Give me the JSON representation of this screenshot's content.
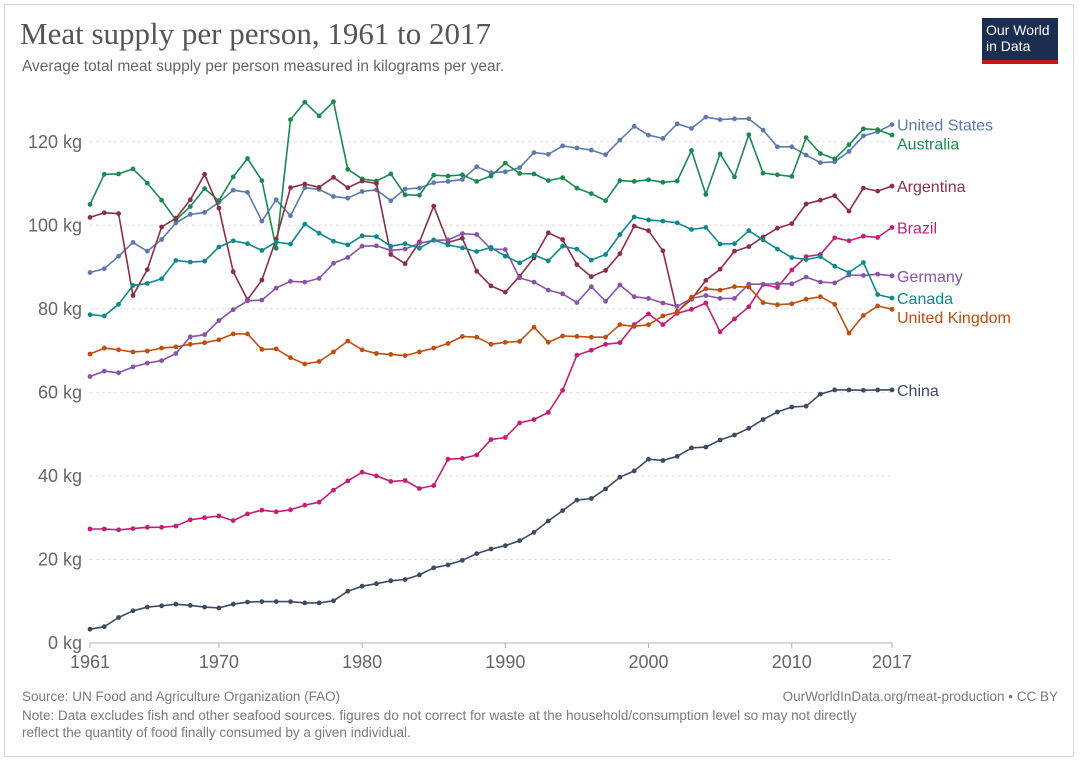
{
  "header": {
    "title": "Meat supply per person, 1961 to 2017",
    "subtitle": "Average total meat supply per person measured in kilograms per year."
  },
  "logo": {
    "line1": "Our World",
    "line2": "in Data"
  },
  "footer": {
    "source": "Source: UN Food and Agriculture Organization (FAO)",
    "url": "OurWorldInData.org/meat-production • CC BY",
    "note_line1": "Note: Data excludes fish and other seafood sources. figures do not correct for waste at the household/consumption level so may not directly",
    "note_line2": "reflect the quantity of food finally consumed by a given individual."
  },
  "chart_data": {
    "type": "line",
    "title": "Meat supply per person, 1961 to 2017",
    "subtitle": "Average total meat supply per person measured in kilograms per year.",
    "xlabel": "",
    "ylabel": "",
    "xlim": [
      1961,
      2017
    ],
    "ylim": [
      0,
      130
    ],
    "x_ticks": [
      1961,
      1970,
      1980,
      1990,
      2000,
      2010,
      2017
    ],
    "y_ticks": [
      0,
      20,
      40,
      60,
      80,
      100,
      120
    ],
    "y_tick_labels": [
      "0 kg",
      "20 kg",
      "40 kg",
      "60 kg",
      "80 kg",
      "100 kg",
      "120 kg"
    ],
    "grid": true,
    "legend": "right-edge labels",
    "x": [
      1961,
      1962,
      1963,
      1964,
      1965,
      1966,
      1967,
      1968,
      1969,
      1970,
      1971,
      1972,
      1973,
      1974,
      1975,
      1976,
      1977,
      1978,
      1979,
      1980,
      1981,
      1982,
      1983,
      1984,
      1985,
      1986,
      1987,
      1988,
      1989,
      1990,
      1991,
      1992,
      1993,
      1994,
      1995,
      1996,
      1997,
      1998,
      1999,
      2000,
      2001,
      2002,
      2003,
      2004,
      2005,
      2006,
      2007,
      2008,
      2009,
      2010,
      2011,
      2012,
      2013,
      2014,
      2015,
      2016,
      2017
    ],
    "series": [
      {
        "name": "United States",
        "color": "#5b7ab0",
        "values": [
          88.7,
          89.6,
          92.6,
          95.9,
          93.8,
          96.6,
          100.6,
          102.6,
          103.1,
          105.5,
          108.4,
          107.9,
          101.0,
          106.1,
          102.3,
          109.0,
          108.6,
          106.9,
          106.5,
          108.1,
          108.5,
          105.9,
          108.7,
          108.9,
          110.2,
          110.5,
          111.0,
          114.0,
          112.6,
          112.8,
          113.8,
          117.4,
          117.0,
          119.0,
          118.5,
          118.0,
          116.9,
          120.4,
          123.7,
          121.6,
          120.8,
          124.3,
          123.2,
          125.9,
          125.3,
          125.5,
          125.5,
          122.8,
          118.8,
          118.8,
          116.8,
          115.0,
          115.2,
          117.7,
          121.4,
          122.4,
          124.1
        ]
      },
      {
        "name": "Australia",
        "color": "#1a8a4f",
        "values": [
          105.0,
          112.2,
          112.3,
          113.5,
          110.1,
          106.0,
          101.3,
          104.5,
          108.8,
          105.9,
          111.6,
          116.0,
          110.7,
          94.5,
          125.3,
          129.5,
          126.2,
          129.6,
          113.4,
          111.1,
          110.6,
          112.3,
          107.3,
          107.2,
          112.0,
          111.8,
          112.1,
          110.5,
          111.8,
          114.9,
          112.4,
          112.3,
          110.7,
          111.4,
          108.9,
          107.6,
          105.9,
          110.7,
          110.5,
          110.9,
          110.3,
          110.6,
          117.9,
          107.4,
          117.1,
          111.6,
          121.7,
          112.5,
          112.1,
          111.7,
          121.0,
          117.2,
          115.9,
          119.3,
          123.1,
          122.9,
          121.6
        ]
      },
      {
        "name": "Argentina",
        "color": "#8b2e48",
        "values": [
          101.9,
          103.0,
          102.8,
          83.2,
          89.4,
          99.6,
          101.7,
          106.1,
          112.2,
          104.1,
          88.9,
          82.2,
          86.9,
          96.7,
          109.0,
          109.9,
          109.1,
          111.5,
          109.0,
          110.6,
          110.0,
          93.0,
          90.8,
          96.0,
          104.6,
          95.9,
          96.9,
          89.0,
          85.5,
          84.0,
          87.8,
          92.2,
          98.2,
          96.6,
          90.6,
          87.7,
          89.2,
          93.2,
          99.8,
          98.7,
          93.9,
          79.3,
          82.3,
          86.8,
          89.5,
          93.8,
          94.9,
          97.2,
          99.3,
          100.4,
          105.1,
          106.0,
          107.1,
          103.4,
          108.9,
          108.2,
          109.4
        ]
      },
      {
        "name": "Brazil",
        "color": "#c41e78",
        "values": [
          27.3,
          27.3,
          27.1,
          27.4,
          27.7,
          27.7,
          28.0,
          29.5,
          30.0,
          30.4,
          29.3,
          30.9,
          31.8,
          31.4,
          31.9,
          33.0,
          33.7,
          36.6,
          38.8,
          40.9,
          40.0,
          38.7,
          38.9,
          37.0,
          37.7,
          44.0,
          44.2,
          45.0,
          48.7,
          49.2,
          52.7,
          53.5,
          55.2,
          60.5,
          68.9,
          70.1,
          71.5,
          71.9,
          76.2,
          78.8,
          76.2,
          78.9,
          79.9,
          81.4,
          74.5,
          77.6,
          80.5,
          85.8,
          85.1,
          89.3,
          92.5,
          93.0,
          97.0,
          96.3,
          97.4,
          97.1,
          99.5
        ]
      },
      {
        "name": "Germany",
        "color": "#8a52a8",
        "values": [
          63.8,
          65.1,
          64.7,
          66.1,
          67.0,
          67.6,
          69.3,
          73.3,
          73.8,
          77.2,
          79.8,
          81.9,
          82.1,
          85.0,
          86.6,
          86.4,
          87.3,
          90.9,
          92.3,
          95.0,
          95.1,
          94.0,
          94.3,
          95.7,
          96.4,
          96.5,
          98.0,
          97.8,
          94.3,
          94.2,
          87.4,
          86.4,
          84.5,
          83.6,
          81.5,
          85.3,
          81.8,
          85.7,
          82.9,
          82.5,
          81.4,
          80.6,
          82.5,
          83.2,
          82.5,
          82.5,
          85.9,
          85.9,
          86.0,
          86.0,
          87.6,
          86.4,
          86.2,
          88.1,
          88.0,
          88.3,
          87.9
        ]
      },
      {
        "name": "Canada",
        "color": "#0e8a8f",
        "values": [
          78.6,
          78.3,
          81.1,
          85.6,
          86.1,
          87.2,
          91.6,
          91.2,
          91.4,
          94.8,
          96.3,
          95.6,
          94.0,
          96.0,
          95.5,
          100.3,
          98.1,
          96.2,
          95.3,
          97.5,
          97.3,
          95.0,
          95.6,
          94.5,
          96.5,
          95.3,
          94.6,
          93.7,
          94.7,
          92.6,
          91.0,
          92.9,
          91.5,
          95.0,
          94.3,
          91.7,
          93.0,
          97.8,
          102.0,
          101.3,
          101.0,
          100.6,
          99.0,
          99.5,
          95.5,
          95.6,
          98.7,
          96.5,
          94.3,
          92.3,
          91.8,
          92.5,
          90.2,
          88.7,
          91.1,
          83.4,
          82.6
        ]
      },
      {
        "name": "United Kingdom",
        "color": "#c04e0e",
        "values": [
          69.2,
          70.6,
          70.2,
          69.7,
          69.9,
          70.6,
          70.9,
          71.5,
          71.9,
          72.6,
          74.0,
          74.0,
          70.3,
          70.4,
          68.3,
          66.8,
          67.4,
          69.7,
          72.3,
          70.2,
          69.3,
          69.1,
          68.8,
          69.7,
          70.6,
          71.7,
          73.4,
          73.2,
          71.5,
          72.0,
          72.2,
          75.6,
          72.0,
          73.5,
          73.4,
          73.2,
          73.2,
          76.2,
          75.8,
          76.2,
          78.3,
          79.2,
          82.8,
          84.8,
          84.5,
          85.3,
          85.2,
          81.5,
          81.0,
          81.2,
          82.3,
          82.9,
          81.1,
          74.2,
          78.4,
          80.7,
          79.9
        ]
      },
      {
        "name": "China",
        "color": "#3d4a63",
        "values": [
          3.3,
          3.9,
          6.1,
          7.7,
          8.6,
          8.9,
          9.3,
          9.0,
          8.6,
          8.4,
          9.3,
          9.8,
          9.9,
          9.9,
          9.9,
          9.6,
          9.6,
          10.1,
          12.4,
          13.6,
          14.2,
          14.9,
          15.2,
          16.3,
          18.0,
          18.7,
          19.8,
          21.4,
          22.5,
          23.3,
          24.5,
          26.5,
          29.2,
          31.7,
          34.2,
          34.6,
          36.9,
          39.7,
          41.2,
          44.0,
          43.7,
          44.7,
          46.7,
          46.9,
          48.6,
          49.8,
          51.4,
          53.5,
          55.3,
          56.5,
          56.7,
          59.6,
          60.6,
          60.6,
          60.5,
          60.6,
          60.6
        ]
      }
    ]
  }
}
